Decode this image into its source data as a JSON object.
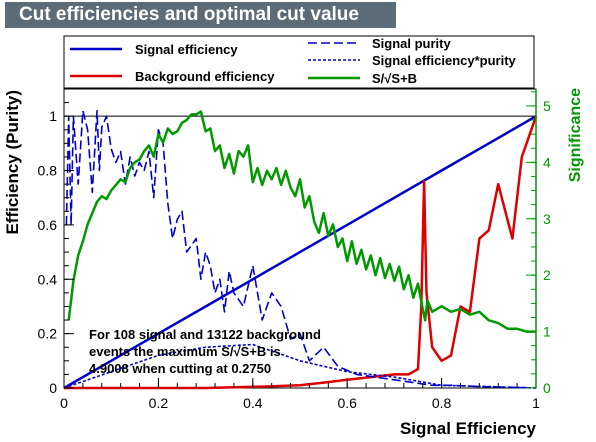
{
  "chart_data": {
    "type": "line",
    "title": "Cut efficiencies and optimal cut value",
    "xlabel": "Signal Efficiency",
    "ylabel": "Efficiency (Purity)",
    "y2label": "Significance",
    "xlim": [
      0,
      1
    ],
    "ylim": [
      0,
      1.1
    ],
    "y2lim": [
      0,
      5.3
    ],
    "xticks": [
      "0",
      "0.2",
      "0.4",
      "0.6",
      "0.8",
      "1"
    ],
    "yticks": [
      "0",
      "0.2",
      "0.4",
      "0.6",
      "0.8",
      "1"
    ],
    "y2ticks": [
      "0",
      "1",
      "2",
      "3",
      "4",
      "5"
    ],
    "grid": false,
    "legend_placement": "top",
    "annotation": [
      "For 108 signal and 13122 background",
      "events the maximum S/√S+B is",
      "4.9008 when cutting at 0.2750"
    ],
    "series": [
      {
        "name": "Signal efficiency",
        "axis": "left",
        "color": "#0000cc",
        "style": "solid",
        "x": [
          0,
          0.1,
          0.2,
          0.3,
          0.4,
          0.5,
          0.6,
          0.7,
          0.8,
          0.9,
          1.0
        ],
        "y": [
          0,
          0.1,
          0.2,
          0.3,
          0.4,
          0.5,
          0.6,
          0.7,
          0.8,
          0.9,
          1.0
        ]
      },
      {
        "name": "Background efficiency",
        "axis": "left",
        "color": "#dd0000",
        "style": "solid",
        "x": [
          0,
          0.3,
          0.42,
          0.5,
          0.55,
          0.6,
          0.65,
          0.7,
          0.73,
          0.75,
          0.757,
          0.763,
          0.768,
          0.78,
          0.8,
          0.82,
          0.84,
          0.86,
          0.88,
          0.9,
          0.92,
          0.95,
          0.97,
          0.99,
          1.0
        ],
        "y": [
          0,
          0,
          0.005,
          0.01,
          0.02,
          0.03,
          0.04,
          0.05,
          0.05,
          0.07,
          0.3,
          0.76,
          0.35,
          0.15,
          0.1,
          0.12,
          0.3,
          0.28,
          0.55,
          0.58,
          0.75,
          0.55,
          0.85,
          0.95,
          1.0
        ]
      },
      {
        "name": "Signal purity",
        "axis": "left",
        "color": "#0000cc",
        "style": "dash",
        "x": [
          0.005,
          0.01,
          0.015,
          0.02,
          0.03,
          0.04,
          0.05,
          0.06,
          0.07,
          0.075,
          0.08,
          0.09,
          0.1,
          0.11,
          0.12,
          0.13,
          0.14,
          0.15,
          0.16,
          0.17,
          0.18,
          0.19,
          0.2,
          0.21,
          0.22,
          0.23,
          0.24,
          0.25,
          0.26,
          0.28,
          0.29,
          0.3,
          0.31,
          0.32,
          0.33,
          0.34,
          0.35,
          0.36,
          0.38,
          0.4,
          0.42,
          0.44,
          0.46,
          0.48,
          0.5,
          0.52,
          0.55,
          0.58,
          0.62,
          0.66,
          0.7,
          0.74,
          0.78,
          0.82,
          0.88,
          0.94,
          1.0
        ],
        "y": [
          0.6,
          1.0,
          0.6,
          1.0,
          0.75,
          1.02,
          0.95,
          0.72,
          1.02,
          0.8,
          0.96,
          1.0,
          0.88,
          0.83,
          0.87,
          0.75,
          0.85,
          0.78,
          0.83,
          0.8,
          0.87,
          0.7,
          0.95,
          0.9,
          0.68,
          0.55,
          0.62,
          0.65,
          0.5,
          0.55,
          0.4,
          0.5,
          0.45,
          0.35,
          0.4,
          0.28,
          0.43,
          0.35,
          0.3,
          0.45,
          0.25,
          0.35,
          0.3,
          0.18,
          0.2,
          0.1,
          0.15,
          0.08,
          0.05,
          0.04,
          0.03,
          0.02,
          0.01,
          0.01,
          0.005,
          0.003,
          0.0
        ]
      },
      {
        "name": "Signal efficiency*purity",
        "axis": "left",
        "color": "#0000cc",
        "style": "dot",
        "x": [
          0,
          0.1,
          0.2,
          0.3,
          0.4,
          0.5,
          0.6,
          0.7,
          0.8,
          0.9,
          1.0
        ],
        "y": [
          0,
          0.06,
          0.12,
          0.15,
          0.16,
          0.1,
          0.06,
          0.04,
          0.01,
          0.005,
          0.0
        ]
      },
      {
        "name": "S/√S+B",
        "axis": "right",
        "color": "#009900",
        "style": "solid",
        "x": [
          0.01,
          0.02,
          0.03,
          0.04,
          0.05,
          0.06,
          0.07,
          0.08,
          0.09,
          0.1,
          0.11,
          0.12,
          0.13,
          0.14,
          0.15,
          0.16,
          0.17,
          0.18,
          0.19,
          0.2,
          0.21,
          0.22,
          0.23,
          0.24,
          0.25,
          0.26,
          0.27,
          0.28,
          0.29,
          0.3,
          0.31,
          0.32,
          0.33,
          0.34,
          0.35,
          0.36,
          0.37,
          0.38,
          0.39,
          0.4,
          0.41,
          0.42,
          0.43,
          0.44,
          0.45,
          0.46,
          0.47,
          0.48,
          0.49,
          0.5,
          0.51,
          0.52,
          0.53,
          0.54,
          0.55,
          0.56,
          0.57,
          0.58,
          0.59,
          0.6,
          0.61,
          0.62,
          0.63,
          0.64,
          0.65,
          0.66,
          0.67,
          0.68,
          0.69,
          0.7,
          0.71,
          0.72,
          0.73,
          0.74,
          0.75,
          0.76,
          0.765,
          0.77,
          0.78,
          0.8,
          0.82,
          0.84,
          0.86,
          0.88,
          0.9,
          0.92,
          0.94,
          0.96,
          0.98,
          1.0
        ],
        "y": [
          1.2,
          1.9,
          2.35,
          2.6,
          2.9,
          3.1,
          3.3,
          3.4,
          3.35,
          3.5,
          3.6,
          3.7,
          3.65,
          3.9,
          4.0,
          4.05,
          4.2,
          4.3,
          4.1,
          4.5,
          4.35,
          4.6,
          4.5,
          4.55,
          4.7,
          4.75,
          4.85,
          4.85,
          4.9,
          4.55,
          4.6,
          4.2,
          4.3,
          3.9,
          4.15,
          3.8,
          4.2,
          4.1,
          4.3,
          3.65,
          3.9,
          3.6,
          3.85,
          3.7,
          3.9,
          3.6,
          3.85,
          3.55,
          3.4,
          3.7,
          3.2,
          3.4,
          2.95,
          2.75,
          3.1,
          2.7,
          2.9,
          2.5,
          2.65,
          2.25,
          2.6,
          2.2,
          2.45,
          2.1,
          2.35,
          2.0,
          2.3,
          1.95,
          2.2,
          1.9,
          2.15,
          1.75,
          2.0,
          1.6,
          1.85,
          1.4,
          1.2,
          1.55,
          1.35,
          1.45,
          1.35,
          1.4,
          1.3,
          1.35,
          1.2,
          1.15,
          1.05,
          1.05,
          1.0,
          1.0
        ]
      }
    ]
  }
}
